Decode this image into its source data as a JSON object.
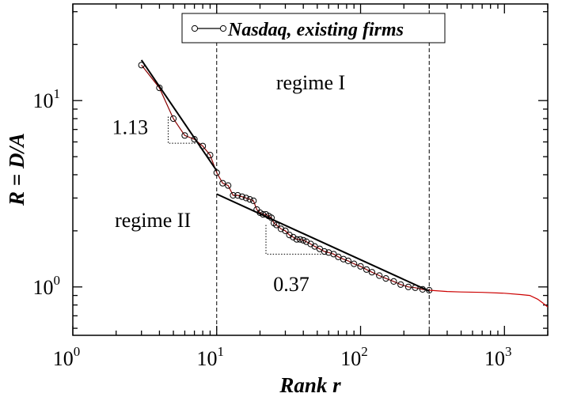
{
  "chart_data": {
    "type": "scatter",
    "title": "",
    "xlabel": "Rank r",
    "ylabel": "R = D/A",
    "xscale": "log",
    "yscale": "log",
    "xlim": [
      1,
      2000
    ],
    "ylim": [
      0.55,
      33
    ],
    "xticks": [
      {
        "base": "10",
        "exp": "0",
        "value": 1
      },
      {
        "base": "10",
        "exp": "1",
        "value": 10
      },
      {
        "base": "10",
        "exp": "2",
        "value": 100
      },
      {
        "base": "10",
        "exp": "3",
        "value": 1000
      }
    ],
    "yticks": [
      {
        "base": "10",
        "exp": "0",
        "value": 1
      },
      {
        "base": "10",
        "exp": "1",
        "value": 10
      }
    ],
    "legend": {
      "position": "top-center",
      "label": "Nasdaq, existing firms"
    },
    "series": [
      {
        "name": "Nasdaq, existing firms",
        "marker": "open-circle",
        "color": "#000000",
        "points": [
          [
            3.0,
            15.5
          ],
          [
            4.0,
            11.7
          ],
          [
            5.0,
            8.0
          ],
          [
            6.0,
            6.5
          ],
          [
            7.0,
            6.2
          ],
          [
            8.0,
            5.7
          ],
          [
            9.0,
            5.1
          ],
          [
            10.0,
            4.1
          ],
          [
            11.0,
            3.6
          ],
          [
            12.0,
            3.5
          ],
          [
            13.0,
            3.1
          ],
          [
            14.0,
            3.1
          ],
          [
            15.0,
            3.05
          ],
          [
            16.0,
            3.0
          ],
          [
            17.0,
            2.95
          ],
          [
            18.0,
            2.9
          ],
          [
            19.0,
            2.6
          ],
          [
            20.0,
            2.5
          ],
          [
            21.0,
            2.45
          ],
          [
            22.0,
            2.45
          ],
          [
            23.0,
            2.4
          ],
          [
            24.0,
            2.35
          ],
          [
            25.0,
            2.2
          ],
          [
            26.0,
            2.15
          ],
          [
            28.0,
            2.05
          ],
          [
            30.0,
            2.0
          ],
          [
            32.0,
            1.9
          ],
          [
            34.0,
            1.85
          ],
          [
            36.0,
            1.8
          ],
          [
            38.0,
            1.8
          ],
          [
            40.0,
            1.78
          ],
          [
            42.0,
            1.75
          ],
          [
            45.0,
            1.7
          ],
          [
            48.0,
            1.65
          ],
          [
            52.0,
            1.6
          ],
          [
            56.0,
            1.55
          ],
          [
            60.0,
            1.53
          ],
          [
            65.0,
            1.5
          ],
          [
            70.0,
            1.45
          ],
          [
            76.0,
            1.41
          ],
          [
            82.0,
            1.38
          ],
          [
            90.0,
            1.33
          ],
          [
            100.0,
            1.29
          ],
          [
            110.0,
            1.24
          ],
          [
            120.0,
            1.2
          ],
          [
            135.0,
            1.15
          ],
          [
            150.0,
            1.11
          ],
          [
            170.0,
            1.07
          ],
          [
            190.0,
            1.03
          ],
          [
            215.0,
            1.0
          ],
          [
            240.0,
            0.99
          ],
          [
            270.0,
            0.97
          ],
          [
            300.0,
            0.96
          ]
        ]
      },
      {
        "name": "",
        "marker": "none",
        "color": "#cc0000",
        "points": [
          [
            300,
            0.96
          ],
          [
            400,
            0.945
          ],
          [
            500,
            0.94
          ],
          [
            700,
            0.935
          ],
          [
            1000,
            0.925
          ],
          [
            1300,
            0.91
          ],
          [
            1500,
            0.9
          ],
          [
            1700,
            0.86
          ],
          [
            1850,
            0.82
          ],
          [
            2000,
            0.78
          ]
        ]
      }
    ],
    "fits": [
      {
        "label": "1.13",
        "x": [
          3,
          10
        ],
        "y": [
          16.5,
          4.2
        ],
        "color": "#000000"
      },
      {
        "label": "0.37",
        "x": [
          10,
          300
        ],
        "y": [
          3.15,
          0.95
        ],
        "color": "#000000"
      }
    ],
    "slope_triangles": [
      {
        "x": [
          4.6,
          7.2
        ],
        "y": [
          5.9,
          8.2
        ]
      },
      {
        "x": [
          22,
          58
        ],
        "y": [
          1.5,
          2.15
        ]
      }
    ],
    "vlines": [
      10,
      300
    ],
    "annotations": [
      {
        "text": "regime I",
        "x": 45,
        "y": 11.5
      },
      {
        "text": "regime II",
        "x": 3.6,
        "y": 2.1
      },
      {
        "text": "1.13",
        "x": 2.5,
        "y": 6.6
      },
      {
        "text": "0.37",
        "x": 33,
        "y": 0.95
      }
    ]
  }
}
